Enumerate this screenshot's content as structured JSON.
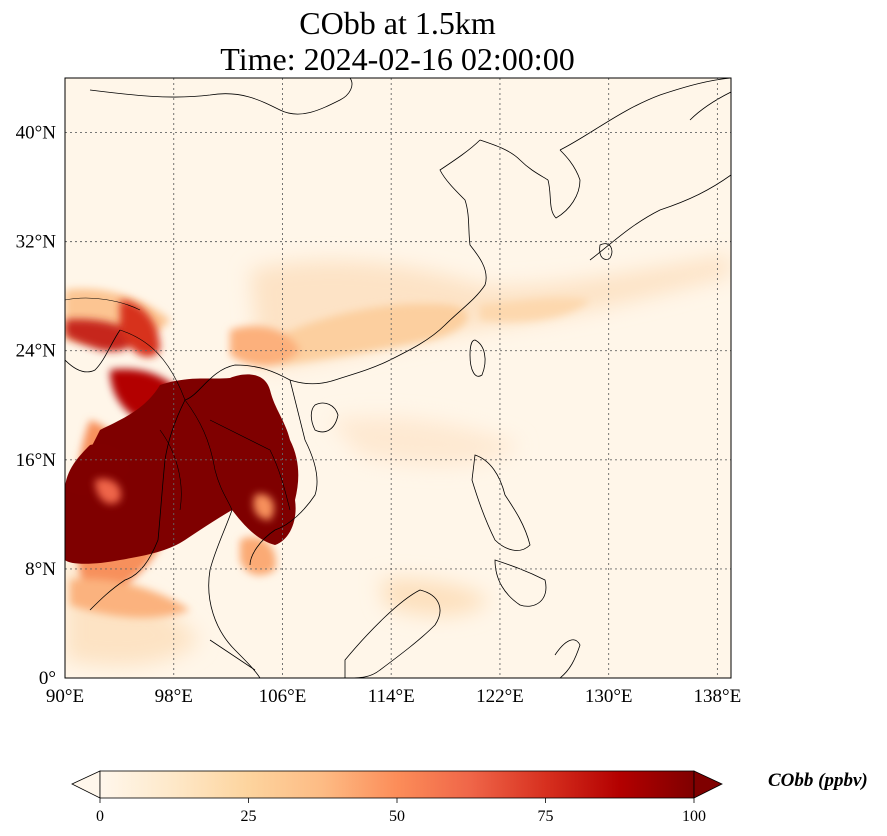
{
  "title": {
    "line1": "CObb at 1.5km",
    "line2": "Time: 2024-02-16 02:00:00"
  },
  "map": {
    "lon_range": [
      90,
      139
    ],
    "lat_range": [
      0,
      44
    ],
    "lon_ticks": [
      "90°E",
      "98°E",
      "106°E",
      "114°E",
      "122°E",
      "130°E",
      "138°E"
    ],
    "lat_ticks": [
      "0°",
      "8°N",
      "16°N",
      "24°N",
      "32°N",
      "40°N"
    ],
    "gridlines": true,
    "colormap": "OrRd",
    "features": [
      {
        "name": "Mainland Southeast Asia burning region",
        "value": "very high (>100 ppbv)"
      },
      {
        "name": "Northeast India / Myanmar border",
        "value": "high"
      },
      {
        "name": "Plume over southern China and East China Sea",
        "value": "low to moderate"
      },
      {
        "name": "Open ocean and northern areas",
        "value": "near zero"
      }
    ]
  },
  "colorbar": {
    "label": "CObb (ppbv)",
    "ticks": [
      "0",
      "25",
      "50",
      "75",
      "100"
    ],
    "min": 0,
    "max": 100,
    "extend": "both",
    "colors": [
      "#fff7ec",
      "#fee8c8",
      "#fdd49e",
      "#fdbb84",
      "#fc8d59",
      "#ef6548",
      "#d7301f",
      "#b30000",
      "#7f0000"
    ]
  }
}
